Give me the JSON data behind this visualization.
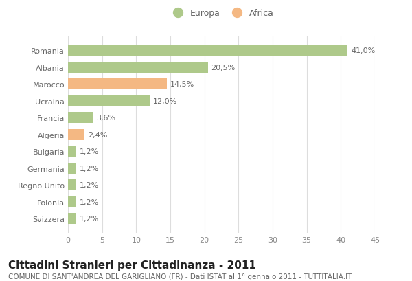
{
  "categories": [
    "Romania",
    "Albania",
    "Marocco",
    "Ucraina",
    "Francia",
    "Algeria",
    "Bulgaria",
    "Germania",
    "Regno Unito",
    "Polonia",
    "Svizzera"
  ],
  "values": [
    41.0,
    20.5,
    14.5,
    12.0,
    3.6,
    2.4,
    1.2,
    1.2,
    1.2,
    1.2,
    1.2
  ],
  "labels": [
    "41,0%",
    "20,5%",
    "14,5%",
    "12,0%",
    "3,6%",
    "2,4%",
    "1,2%",
    "1,2%",
    "1,2%",
    "1,2%",
    "1,2%"
  ],
  "colors": [
    "#aec98a",
    "#aec98a",
    "#f4b883",
    "#aec98a",
    "#aec98a",
    "#f4b883",
    "#aec98a",
    "#aec98a",
    "#aec98a",
    "#aec98a",
    "#aec98a"
  ],
  "legend_europa_color": "#aec98a",
  "legend_africa_color": "#f4b883",
  "title": "Cittadini Stranieri per Cittadinanza - 2011",
  "subtitle": "COMUNE DI SANT'ANDREA DEL GARIGLIANO (FR) - Dati ISTAT al 1° gennaio 2011 - TUTTITALIA.IT",
  "xlim": [
    0,
    45
  ],
  "xticks": [
    0,
    5,
    10,
    15,
    20,
    25,
    30,
    35,
    40,
    45
  ],
  "background_color": "#ffffff",
  "grid_color": "#dddddd",
  "bar_height": 0.65,
  "title_fontsize": 11,
  "subtitle_fontsize": 7.5,
  "label_fontsize": 8,
  "tick_fontsize": 8,
  "ytick_fontsize": 8
}
